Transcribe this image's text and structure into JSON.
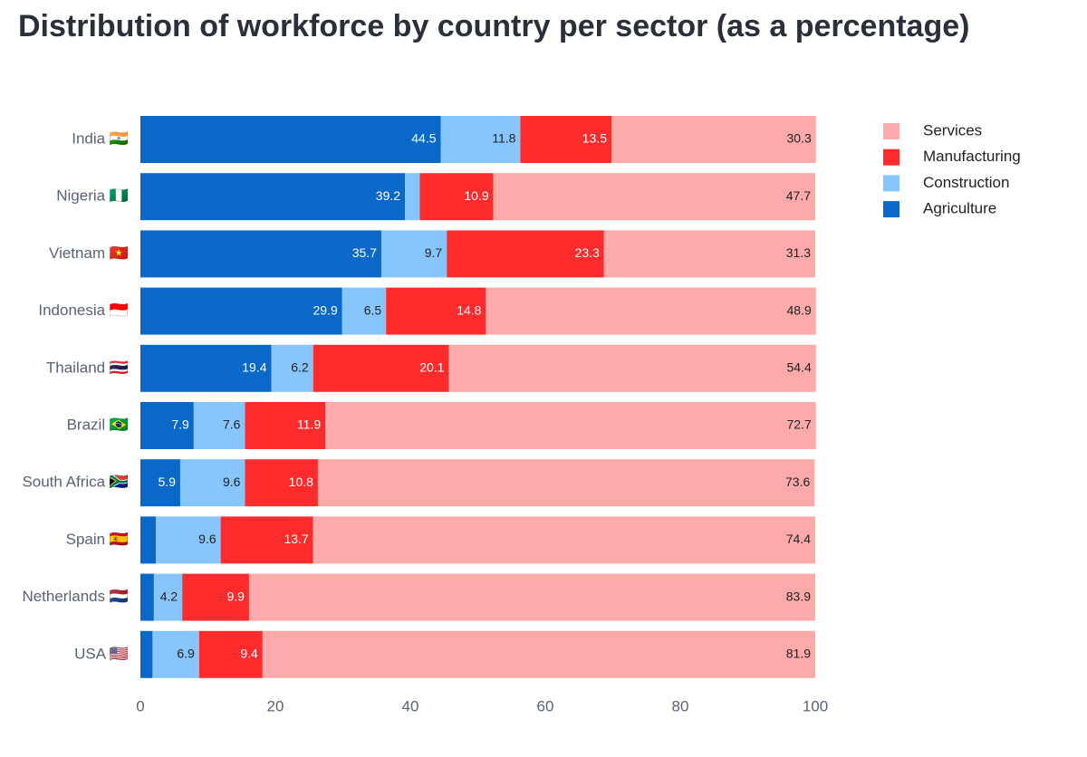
{
  "chart_data": {
    "type": "stacked_bar_horizontal",
    "title": "Distribution of workforce by country per sector (as a percentage)",
    "categories": [
      "India 🇮🇳",
      "Nigeria 🇳🇬",
      "Vietnam 🇻🇳",
      "Indonesia 🇮🇩",
      "Thailand 🇹🇭",
      "Brazil 🇧🇷",
      "South Africa 🇿🇦",
      "Spain 🇪🇸",
      "Netherlands 🇳🇱",
      "USA 🇺🇸"
    ],
    "series": [
      {
        "name": "Agriculture",
        "color": "#0a68c8",
        "values": [
          44.5,
          39.2,
          35.7,
          29.9,
          19.4,
          7.9,
          5.9,
          2.3,
          2.0,
          1.8
        ]
      },
      {
        "name": "Construction",
        "color": "#87c6fd",
        "values": [
          11.8,
          2.2,
          9.7,
          6.5,
          6.2,
          7.6,
          9.6,
          9.6,
          4.2,
          6.9
        ]
      },
      {
        "name": "Manufacturing",
        "color": "#fe2b2c",
        "values": [
          13.5,
          10.9,
          23.3,
          14.8,
          20.1,
          11.9,
          10.8,
          13.7,
          9.9,
          9.4
        ]
      },
      {
        "name": "Services",
        "color": "#fdaaaa",
        "values": [
          30.3,
          47.7,
          31.3,
          48.9,
          54.4,
          72.7,
          73.6,
          74.4,
          83.9,
          81.9
        ]
      }
    ],
    "xlim": [
      0,
      100
    ],
    "xticks": [
      0,
      20,
      40,
      60,
      80,
      100
    ],
    "grid": false,
    "legend": "right"
  }
}
